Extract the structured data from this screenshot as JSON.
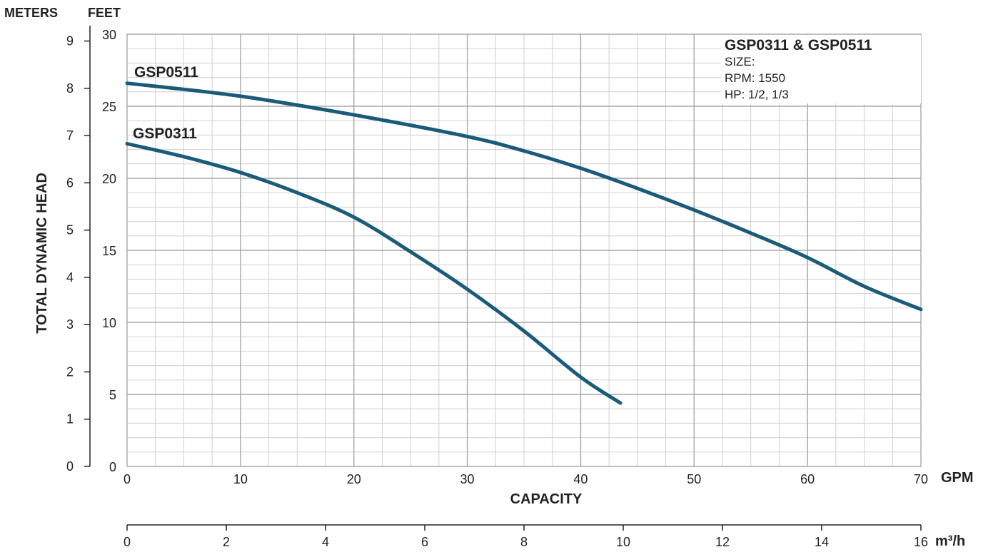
{
  "chart_data": {
    "type": "line",
    "x_unit_label": "GPM",
    "x_title": "CAPACITY",
    "x_ticks": [
      0,
      10,
      20,
      30,
      40,
      50,
      60,
      70
    ],
    "xlim": [
      0,
      70
    ],
    "secondary_x_unit_label": "m³/h",
    "secondary_x_ticks": [
      0,
      2,
      4,
      6,
      8,
      10,
      12,
      14,
      16
    ],
    "secondary_xlim": [
      0,
      16
    ],
    "y_title": "TOTAL DYNAMIC HEAD",
    "y_unit_label": "FEET",
    "y_ticks": [
      0,
      5,
      10,
      15,
      20,
      25,
      30
    ],
    "ylim": [
      0,
      30
    ],
    "left_y_unit_label": "METERS",
    "left_y_ticks": [
      0,
      1,
      2,
      3,
      4,
      5,
      6,
      7,
      8,
      9
    ],
    "grid": true,
    "info_box": {
      "title": "GSP0311 & GSP0511",
      "lines": [
        "SIZE:",
        "RPM: 1550",
        "HP: 1/2, 1/3"
      ]
    },
    "series": [
      {
        "name": "GSP0511",
        "color": "#1b5b7a",
        "x": [
          0,
          10,
          20,
          30,
          35,
          40,
          45,
          50,
          55,
          60,
          65,
          70
        ],
        "y": [
          26.6,
          25.7,
          24.4,
          22.9,
          21.9,
          20.7,
          19.3,
          17.8,
          16.2,
          14.5,
          12.5,
          10.9
        ]
      },
      {
        "name": "GSP0311",
        "color": "#1b5b7a",
        "x": [
          0,
          5,
          10,
          15,
          20,
          25,
          30,
          35,
          40,
          43.5
        ],
        "y": [
          22.4,
          21.5,
          20.4,
          19.0,
          17.3,
          14.9,
          12.3,
          9.4,
          6.2,
          4.4
        ]
      }
    ]
  }
}
